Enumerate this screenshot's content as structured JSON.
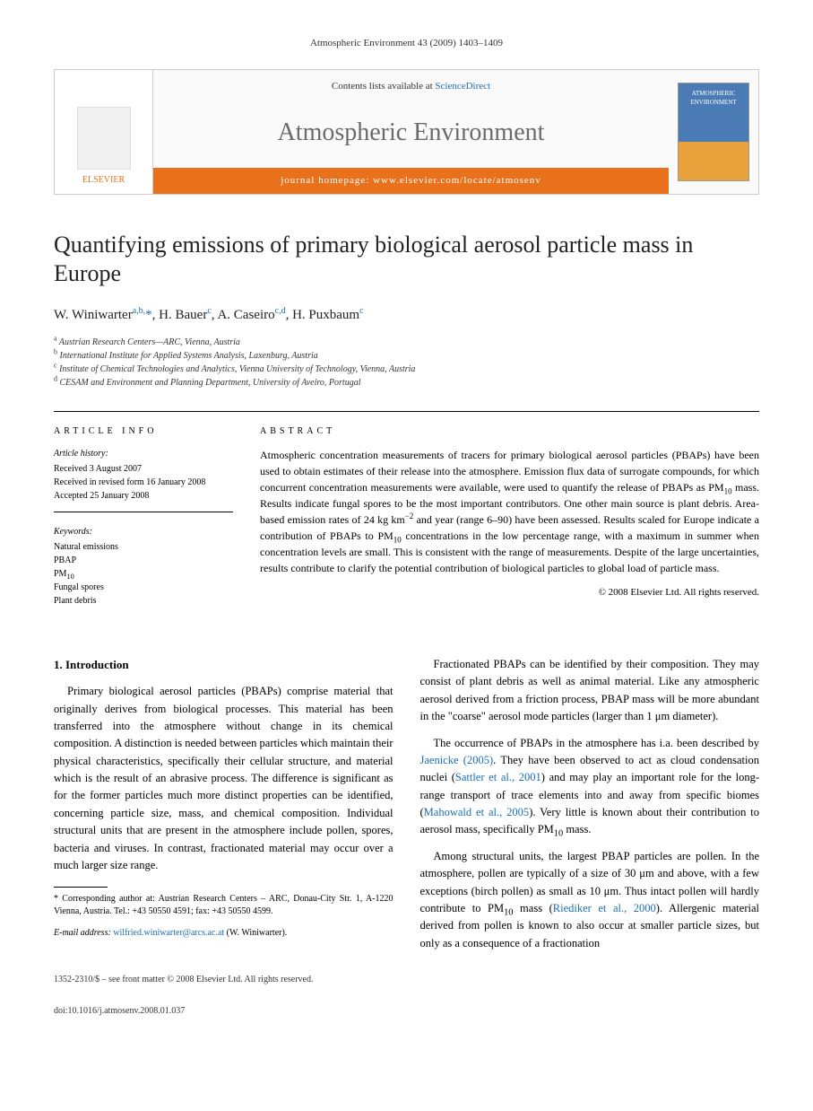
{
  "running_header": "Atmospheric Environment 43 (2009) 1403–1409",
  "masthead": {
    "publisher": "ELSEVIER",
    "contents_prefix": "Contents lists available at ",
    "contents_link": "ScienceDirect",
    "journal": "Atmospheric Environment",
    "homepage_label": "journal homepage: ",
    "homepage_url": "www.elsevier.com/locate/atmosenv",
    "cover_text": "ATMOSPHERIC ENVIRONMENT"
  },
  "title": "Quantifying emissions of primary biological aerosol particle mass in Europe",
  "authors_html": "W. Winiwarter <sup>a,b,</sup>*, H. Bauer <sup>c</sup>, A. Caseiro <sup>c,d</sup>, H. Puxbaum <sup>c</sup>",
  "affiliations": [
    "a Austrian Research Centers—ARC, Vienna, Austria",
    "b International Institute for Applied Systems Analysis, Laxenburg, Austria",
    "c Institute of Chemical Technologies and Analytics, Vienna University of Technology, Vienna, Austria",
    "d CESAM and Environment and Planning Department, University of Aveiro, Portugal"
  ],
  "article_info": {
    "heading": "ARTICLE INFO",
    "history_label": "Article history:",
    "received": "Received 3 August 2007",
    "revised": "Received in revised form 16 January 2008",
    "accepted": "Accepted 25 January 2008",
    "keywords_label": "Keywords:",
    "keywords": [
      "Natural emissions",
      "PBAP",
      "PM10",
      "Fungal spores",
      "Plant debris"
    ]
  },
  "abstract": {
    "heading": "ABSTRACT",
    "text": "Atmospheric concentration measurements of tracers for primary biological aerosol particles (PBAPs) have been used to obtain estimates of their release into the atmosphere. Emission flux data of surrogate compounds, for which concurrent concentration measurements were available, were used to quantify the release of PBAPs as PM10 mass. Results indicate fungal spores to be the most important contributors. One other main source is plant debris. Area-based emission rates of 24 kg km−2 and year (range 6–90) have been assessed. Results scaled for Europe indicate a contribution of PBAPs to PM10 concentrations in the low percentage range, with a maximum in summer when concentration levels are small. This is consistent with the range of measurements. Despite of the large uncertainties, results contribute to clarify the potential contribution of biological particles to global load of particle mass.",
    "copyright": "© 2008 Elsevier Ltd. All rights reserved."
  },
  "body": {
    "section1_heading": "1. Introduction",
    "p1": "Primary biological aerosol particles (PBAPs) comprise material that originally derives from biological processes. This material has been transferred into the atmosphere without change in its chemical composition. A distinction is needed between particles which maintain their physical characteristics, specifically their cellular structure, and material which is the result of an abrasive process. The difference is significant as for the former particles much more distinct properties can be identified, concerning particle size, mass, and chemical composition. Individual structural units that are present in the atmosphere include pollen, spores, bacteria and viruses. In contrast, fractionated material may occur over a much larger size range.",
    "p2": "Fractionated PBAPs can be identified by their composition. They may consist of plant debris as well as animal material. Like any atmospheric aerosol derived from a friction process, PBAP mass will be more abundant in the \"coarse\" aerosol mode particles (larger than 1 μm diameter).",
    "p3_a": "The occurrence of PBAPs in the atmosphere has i.a. been described by ",
    "p3_ref1": "Jaenicke (2005)",
    "p3_b": ". They have been observed to act as cloud condensation nuclei (",
    "p3_ref2": "Sattler et al., 2001",
    "p3_c": ") and may play an important role for the long-range transport of trace elements into and away from specific biomes (",
    "p3_ref3": "Mahowald et al., 2005",
    "p3_d": "). Very little is known about their contribution to aerosol mass, specifically PM10 mass.",
    "p4_a": "Among structural units, the largest PBAP particles are pollen. In the atmosphere, pollen are typically of a size of 30 μm and above, with a few exceptions (birch pollen) as small as 10 μm. Thus intact pollen will hardly contribute to PM10 mass (",
    "p4_ref1": "Riediker et al., 2000",
    "p4_b": "). Allergenic material derived from pollen is known to also occur at smaller particle sizes, but only as a consequence of a fractionation"
  },
  "footnote": {
    "corr": "* Corresponding author at: Austrian Research Centers – ARC, Donau-City Str. 1, A-1220 Vienna, Austria. Tel.: +43 50550 4591; fax: +43 50550 4599.",
    "email_label": "E-mail address: ",
    "email": "wilfried.winiwarter@arcs.ac.at",
    "email_who": " (W. Winiwarter)."
  },
  "footer": {
    "line1": "1352-2310/$ – see front matter © 2008 Elsevier Ltd. All rights reserved.",
    "line2": "doi:10.1016/j.atmosenv.2008.01.037"
  },
  "colors": {
    "accent_orange": "#e9711c",
    "link_blue": "#1a6fb5",
    "journal_gray": "#6b6b6b"
  }
}
